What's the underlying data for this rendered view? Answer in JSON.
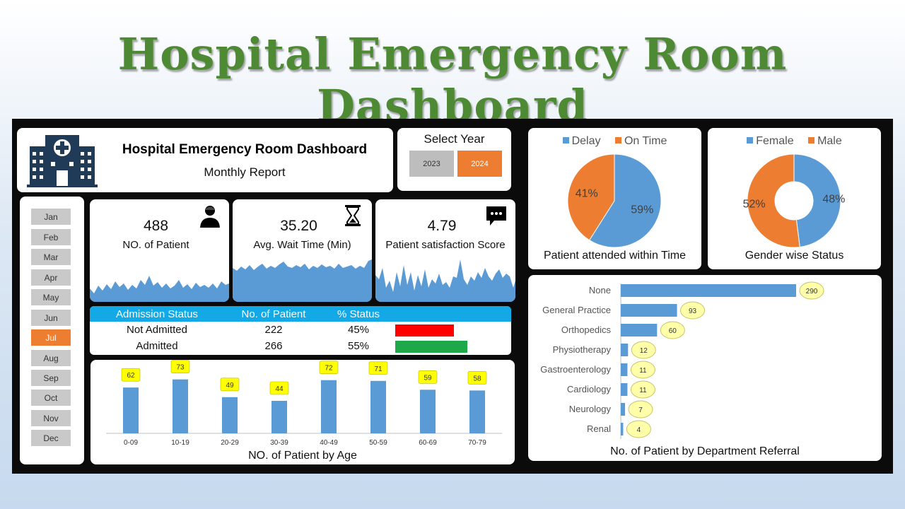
{
  "page_title": "Hospital Emergency Room Dashboard",
  "header": {
    "title": "Hospital Emergency Room Dashboard",
    "subtitle": "Monthly Report"
  },
  "year_selector": {
    "title": "Select Year",
    "years": [
      "2023",
      "2024"
    ],
    "selected": "2024"
  },
  "months": {
    "items": [
      "Jan",
      "Feb",
      "Mar",
      "Apr",
      "May",
      "Jun",
      "Jul",
      "Aug",
      "Sep",
      "Oct",
      "Nov",
      "Dec"
    ],
    "selected": "Jul"
  },
  "kpis": [
    {
      "value": "488",
      "label": "NO. of Patient",
      "icon": "patient-icon"
    },
    {
      "value": "35.20",
      "label": "Avg. Wait Time (Min)",
      "icon": "hourglass-icon"
    },
    {
      "value": "4.79",
      "label": "Patient satisfaction Score",
      "icon": "chat-icon"
    }
  ],
  "admission": {
    "headers": [
      "Admission Status",
      "No. of Patient",
      "% Status"
    ],
    "rows": [
      {
        "status": "Not Admitted",
        "count": "222",
        "pct": "45%",
        "fraction": 0.45,
        "color": "#ff0000"
      },
      {
        "status": "Admitted",
        "count": "266",
        "pct": "55%",
        "fraction": 0.55,
        "color": "#1ea84a"
      }
    ]
  },
  "colors": {
    "accent_orange": "#ed7d31",
    "series_blue": "#5b9bd5",
    "title_green": "#4e8a34",
    "table_header": "#12a9e6"
  },
  "chart_data": [
    {
      "type": "bar",
      "title": "NO. of Patient by Age",
      "categories": [
        "0-09",
        "10-19",
        "20-29",
        "30-39",
        "40-49",
        "50-59",
        "60-69",
        "70-79"
      ],
      "values": [
        62,
        73,
        49,
        44,
        72,
        71,
        59,
        58
      ],
      "ylim": [
        0,
        80
      ],
      "data_labels": true
    },
    {
      "type": "pie",
      "title": "Patient attended within Time",
      "labels": [
        "Delay",
        "On Time"
      ],
      "values": [
        59,
        41
      ],
      "colors": [
        "#5b9bd5",
        "#ed7d31"
      ],
      "legend": "top"
    },
    {
      "type": "pie",
      "donut": true,
      "title": "Gender wise Status",
      "labels": [
        "Female",
        "Male"
      ],
      "values": [
        48,
        52
      ],
      "colors": [
        "#5b9bd5",
        "#ed7d31"
      ],
      "legend": "top"
    },
    {
      "type": "bar",
      "orientation": "horizontal",
      "title": "No. of Patient by Department Referral",
      "categories": [
        "None",
        "General Practice",
        "Orthopedics",
        "Physiotherapy",
        "Gastroenterology",
        "Cardiology",
        "Neurology",
        "Renal"
      ],
      "values": [
        290,
        93,
        60,
        12,
        11,
        11,
        7,
        4
      ],
      "data_labels": true
    }
  ]
}
